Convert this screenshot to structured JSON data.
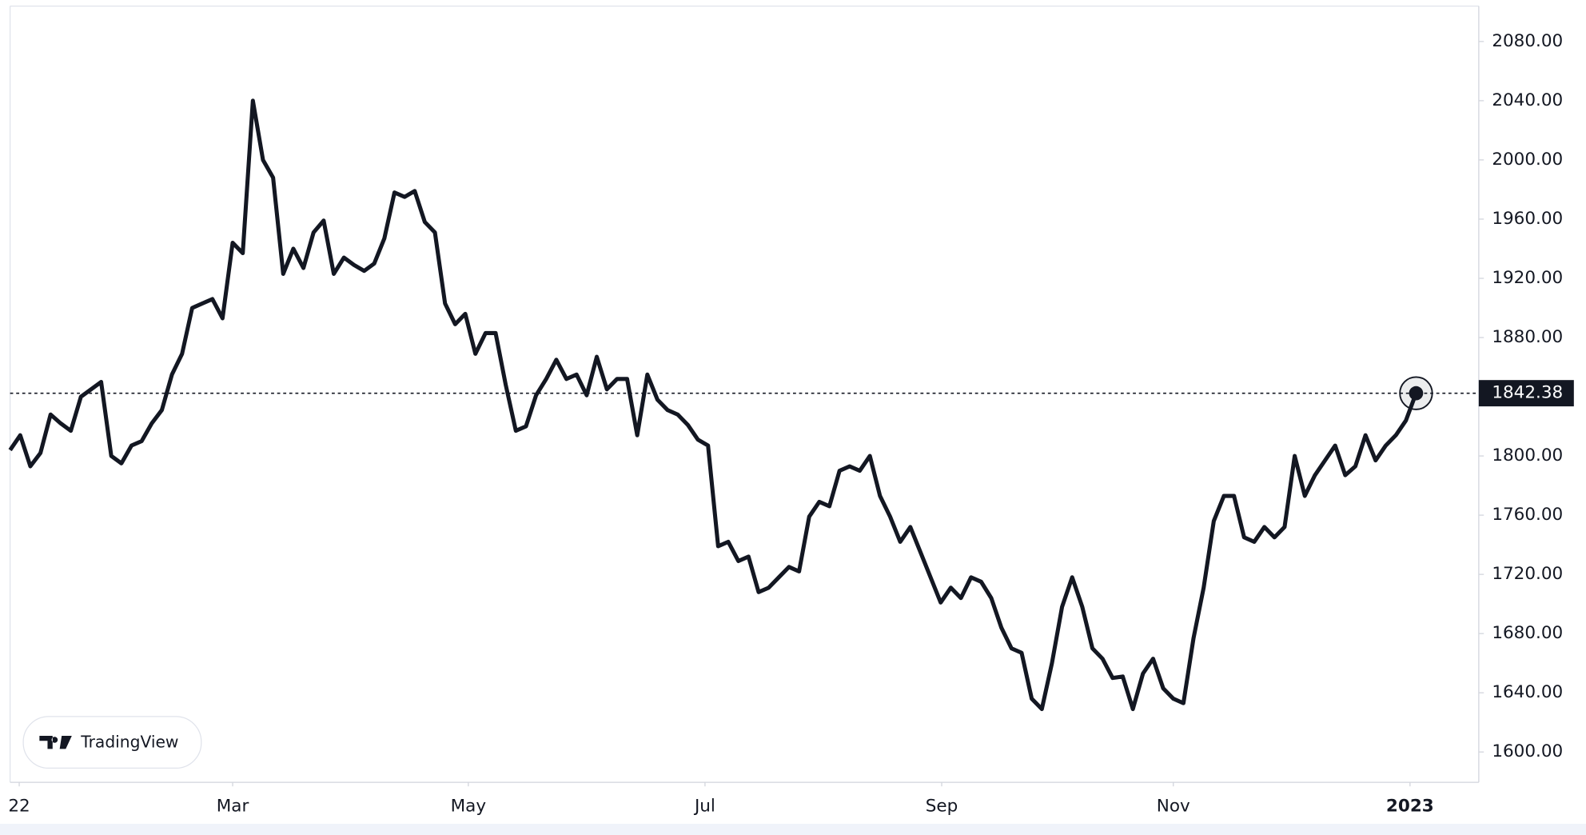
{
  "chart_data": {
    "type": "line",
    "watermark": "TradingView",
    "color": "#131722",
    "values": [
      1804,
      1814,
      1793,
      1802,
      1828,
      1822,
      1817,
      1840,
      1845,
      1850,
      1800,
      1795,
      1807,
      1810,
      1822,
      1831,
      1855,
      1869,
      1900,
      1903,
      1906,
      1893,
      1944,
      1937,
      2040,
      2000,
      1988,
      1923,
      1940,
      1927,
      1951,
      1959,
      1923,
      1934,
      1929,
      1925,
      1930,
      1947,
      1978,
      1975,
      1979,
      1958,
      1951,
      1903,
      1889,
      1896,
      1869,
      1883,
      1883,
      1848,
      1817,
      1820,
      1841,
      1852,
      1865,
      1852,
      1855,
      1841,
      1867,
      1845,
      1852,
      1852,
      1814,
      1855,
      1838,
      1831,
      1828,
      1821,
      1811,
      1807,
      1739,
      1742,
      1729,
      1732,
      1708,
      1711,
      1718,
      1725,
      1722,
      1759,
      1769,
      1766,
      1790,
      1793,
      1790,
      1800,
      1773,
      1759,
      1742,
      1752,
      1735,
      1718,
      1701,
      1711,
      1704,
      1718,
      1715,
      1704,
      1684,
      1670,
      1667,
      1636,
      1629,
      1660,
      1698,
      1718,
      1698,
      1670,
      1663,
      1650,
      1651,
      1629,
      1653,
      1663,
      1643,
      1636,
      1633,
      1677,
      1711,
      1756,
      1773,
      1773,
      1745,
      1742,
      1752,
      1745,
      1752,
      1800,
      1773,
      1787,
      1797,
      1807,
      1787,
      1793,
      1814,
      1797,
      1807,
      1814,
      1824,
      1842.38
    ],
    "xlim": [
      0,
      145.2
    ],
    "xticks": [
      {
        "value": 0.9,
        "label": "22"
      },
      {
        "value": 22,
        "label": "Mar"
      },
      {
        "value": 45.3,
        "label": "May"
      },
      {
        "value": 68.7,
        "label": "Jul"
      },
      {
        "value": 92.1,
        "label": "Sep"
      },
      {
        "value": 115,
        "label": "Nov"
      },
      {
        "value": 138.4,
        "label": "2023"
      }
    ],
    "ylim": [
      1579.5,
      2103.9
    ],
    "yticks": [
      {
        "value": 1600,
        "label": "1600.00"
      },
      {
        "value": 1640,
        "label": "1640.00"
      },
      {
        "value": 1680,
        "label": "1680.00"
      },
      {
        "value": 1720,
        "label": "1720.00"
      },
      {
        "value": 1760,
        "label": "1760.00"
      },
      {
        "value": 1800,
        "label": "1800.00"
      },
      {
        "value": 1840,
        "label": "1840.00"
      },
      {
        "value": 1880,
        "label": "1880.00"
      },
      {
        "value": 1920,
        "label": "1920.00"
      },
      {
        "value": 1960,
        "label": "1960.00"
      },
      {
        "value": 2000,
        "label": "2000.00"
      },
      {
        "value": 2040,
        "label": "2040.00"
      },
      {
        "value": 2080,
        "label": "2080.00"
      }
    ]
  }
}
